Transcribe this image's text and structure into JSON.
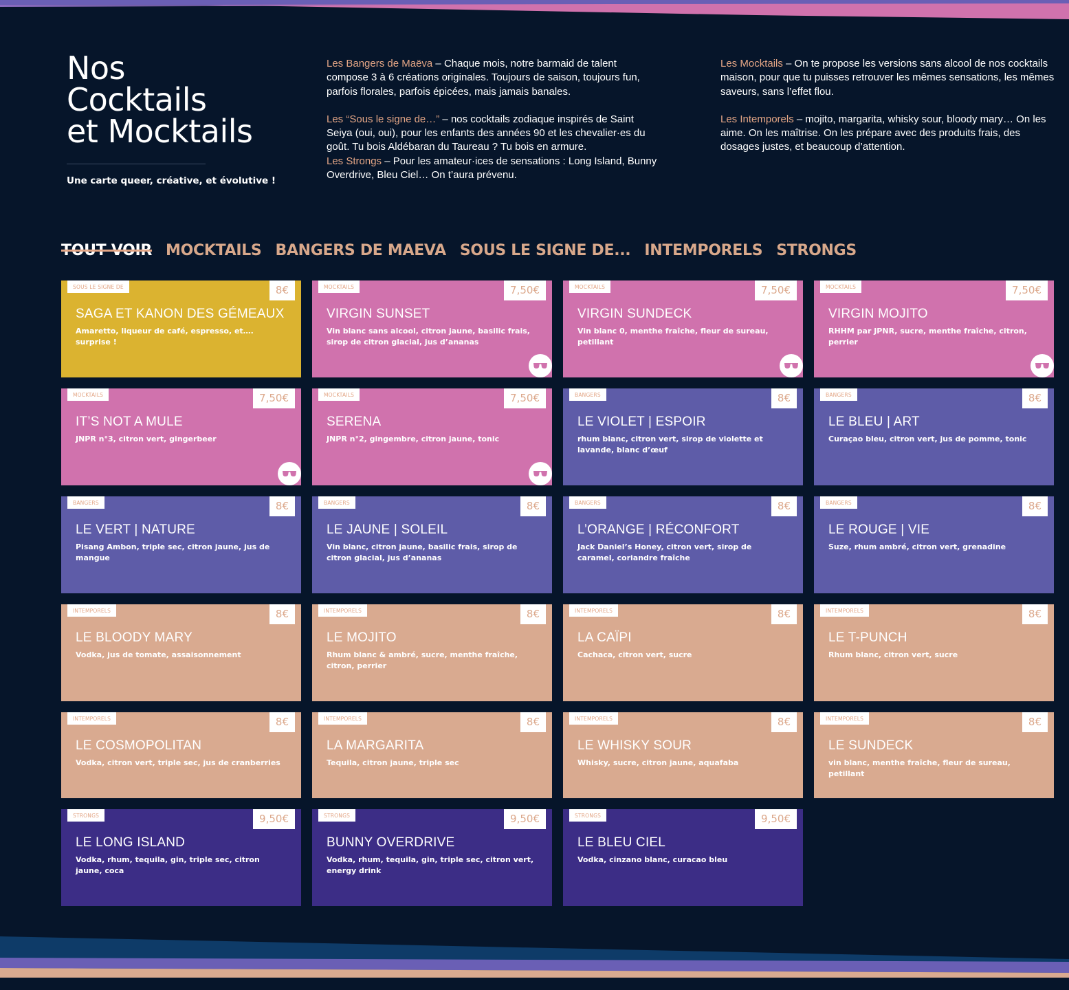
{
  "colors": {
    "background": "#06152a",
    "accent": "#e3a585",
    "sous_le_signe": "#dbb330",
    "mocktails": "#d072ad",
    "bangers": "#5e5ca8",
    "intemporels": "#d9aa90",
    "strongs": "#3c2d86"
  },
  "header": {
    "title_lines": [
      "Nos",
      "Cocktails",
      "et Mocktails"
    ],
    "tagline": "Une carte queer, créative, et évolutive !"
  },
  "intro": {
    "bangers": {
      "label": "Les Bangers de Maëva",
      "text": " – Chaque mois, notre barmaid de talent compose 3 à 6 créations originales. Toujours de saison, toujours fun, parfois florales, parfois épicées, mais jamais banales."
    },
    "sous": {
      "label": "Les “Sous le signe de…”",
      "text": " – nos cocktails zodiaque inspirés de Saint Seiya (oui, oui), pour les enfants des années 90 et les chevalier·es du goût. Tu bois Aldébaran du Taureau ? Tu bois en armure."
    },
    "strongs": {
      "label": "Les Strongs",
      "text": " – Pour les amateur·ices de sensations : Long Island, Bunny Overdrive, Bleu Ciel… On t’aura prévenu."
    },
    "mocktails": {
      "label": "Les Mocktails",
      "text": " – On te propose les versions sans alcool de nos cocktails maison, pour que tu puisses retrouver les mêmes sensations, les mêmes saveurs, sans l’effet flou."
    },
    "intemporels": {
      "label": "Les Intemporels",
      "text": " – mojito, margarita, whisky sour, bloody mary… On les aime. On les maîtrise. On les prépare avec des produits frais, des dosages justes, et beaucoup d’attention."
    }
  },
  "tabs": [
    "TOUT VOIR",
    "MOCKTAILS",
    "BANGERS DE MAEVA",
    "SOUS LE SIGNE DE...",
    "INTEMPORELS",
    "STRONGS"
  ],
  "active_tab": "TOUT VOIR",
  "cards": [
    {
      "badge": "SOUS LE SIGNE DE",
      "price": "8€",
      "name": "SAGA ET KANON DES GÉMEAUX",
      "desc": "Amaretto, liqueur de café, espresso, et…. surprise !",
      "cat": "sous",
      "icon": "",
      "height": "full"
    },
    {
      "badge": "MOCKTAILS",
      "price": "7,50€",
      "name": "VIRGIN SUNSET",
      "desc": "Vin blanc sans alcool, citron jaune, basilic frais, sirop de citron glacial, jus d’ananas",
      "cat": "mock",
      "icon": "sunglasses-icon",
      "height": "full"
    },
    {
      "badge": "MOCKTAILS",
      "price": "7,50€",
      "name": "VIRGIN SUNDECK",
      "desc": "Vin blanc 0, menthe fraîche, fleur de sureau, petillant",
      "cat": "mock",
      "icon": "sunglasses-icon",
      "height": "full"
    },
    {
      "badge": "MOCKTAILS",
      "price": "7,50€",
      "name": "VIRGIN MOJITO",
      "desc": "RHHM par JPNR, sucre, menthe fraîche, citron, perrier",
      "cat": "mock",
      "icon": "sunglasses-icon",
      "height": "full"
    },
    {
      "badge": "MOCKTAILS",
      "price": "7,50€",
      "name": "IT’S NOT A MULE",
      "desc": "JNPR n°3, citron vert, gingerbeer",
      "cat": "mock",
      "icon": "sunglasses-icon",
      "height": "full"
    },
    {
      "badge": "MOCKTAILS",
      "price": "7,50€",
      "name": "SERENA",
      "desc": "JNPR n°2, gingembre, citron jaune, tonic",
      "cat": "mock",
      "icon": "sunglasses-icon",
      "height": "full"
    },
    {
      "badge": "BANGERS",
      "price": "8€",
      "name": "LE VIOLET | ESPOIR",
      "desc": "rhum blanc, citron vert, sirop de violette et lavande, blanc d’œuf",
      "cat": "bang",
      "icon": "",
      "height": "full"
    },
    {
      "badge": "BANGERS",
      "price": "8€",
      "name": "LE BLEU | ART",
      "desc": "Curaçao bleu, citron vert, jus de pomme, tonic",
      "cat": "bang",
      "icon": "",
      "height": "full"
    },
    {
      "badge": "BANGERS",
      "price": "8€",
      "name": "LE VERT | NATURE",
      "desc": "Pisang Ambon, triple sec, citron jaune, jus de mangue",
      "cat": "bang",
      "icon": "",
      "height": "full"
    },
    {
      "badge": "BANGERS",
      "price": "8€",
      "name": "LE JAUNE | SOLEIL",
      "desc": "Vin blanc, citron jaune, basilic frais, sirop de citron glacial, jus d’ananas",
      "cat": "bang",
      "icon": "",
      "height": "full"
    },
    {
      "badge": "BANGERS",
      "price": "8€",
      "name": "L’ORANGE | RÉCONFORT",
      "desc": "Jack Daniel’s Honey, citron vert, sirop de caramel, coriandre fraîche",
      "cat": "bang",
      "icon": "",
      "height": "full"
    },
    {
      "badge": "BANGERS",
      "price": "8€",
      "name": "LE ROUGE | VIE",
      "desc": "Suze, rhum ambré, citron vert, grenadine",
      "cat": "bang",
      "icon": "",
      "height": "full"
    },
    {
      "badge": "INTEMPORELS",
      "price": "8€",
      "name": "LE BLOODY MARY",
      "desc": "Vodka, jus de tomate, assaisonnement",
      "cat": "intem",
      "icon": "",
      "height": "full"
    },
    {
      "badge": "INTEMPORELS",
      "price": "8€",
      "name": "LE MOJITO",
      "desc": "Rhum blanc & ambré, sucre, menthe fraîche, citron, perrier",
      "cat": "intem",
      "icon": "",
      "height": "full"
    },
    {
      "badge": "INTEMPORELS",
      "price": "8€",
      "name": "LA CAÏPI",
      "desc": "Cachaca, citron vert, sucre",
      "cat": "intem",
      "icon": "",
      "height": "full"
    },
    {
      "badge": "INTEMPORELS",
      "price": "8€",
      "name": "LE T-PUNCH",
      "desc": "Rhum blanc, citron vert, sucre",
      "cat": "intem",
      "icon": "",
      "height": "full"
    },
    {
      "badge": "INTEMPORELS",
      "price": "8€",
      "name": "LE COSMOPOLITAN",
      "desc": "Vodka, citron vert, triple sec, jus de cranberries",
      "cat": "intem",
      "icon": "",
      "height": "short"
    },
    {
      "badge": "INTEMPORELS",
      "price": "8€",
      "name": "LA MARGARITA",
      "desc": "Tequila, citron jaune, triple sec",
      "cat": "intem",
      "icon": "",
      "height": "short"
    },
    {
      "badge": "INTEMPORELS",
      "price": "8€",
      "name": "LE WHISKY SOUR",
      "desc": "Whisky, sucre, citron jaune, aquafaba",
      "cat": "intem",
      "icon": "",
      "height": "short"
    },
    {
      "badge": "INTEMPORELS",
      "price": "8€",
      "name": "LE SUNDECK",
      "desc": "vin blanc, menthe fraîche, fleur de sureau, petillant",
      "cat": "intem",
      "icon": "",
      "height": "short"
    },
    {
      "badge": "STRONGS",
      "price": "9,50€",
      "name": "LE LONG ISLAND",
      "desc": "Vodka, rhum, tequila, gin, triple sec, citron jaune, coca",
      "cat": "strong",
      "icon": "",
      "height": "full"
    },
    {
      "badge": "STRONGS",
      "price": "9,50€",
      "name": "BUNNY OVERDRIVE",
      "desc": "Vodka, rhum, tequila, gin, triple sec, citron vert, energy drink",
      "cat": "strong",
      "icon": "",
      "height": "full"
    },
    {
      "badge": "STRONGS",
      "price": "9,50€",
      "name": "LE BLEU CIEL",
      "desc": "Vodka, cinzano blanc, curacao bleu",
      "cat": "strong",
      "icon": "",
      "height": "full"
    }
  ]
}
